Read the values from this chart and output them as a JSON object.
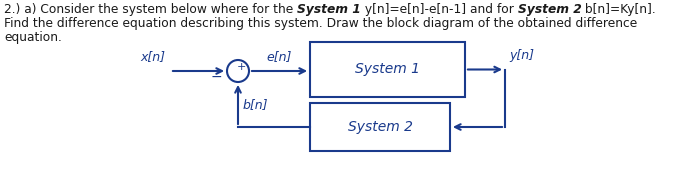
{
  "seg1": "2.) a) Consider the system below where for the ",
  "seg2": "System 1",
  "seg3": " y[n]=e[n]-e[n-1] and for ",
  "seg4": "System 2",
  "seg5": " b[n]=Ky[n].",
  "line2": "Find the difference equation describing this system. Draw the block diagram of the obtained difference",
  "line3": "equation.",
  "text_color": "#1a1a1a",
  "ink_color": "#1a3a8c",
  "bg_color": "#ffffff",
  "font_size": 8.8,
  "label_xn": "x[n]",
  "label_en": "e[n]",
  "label_bn": "b[n]",
  "label_yn": "y[n]",
  "label_sys1": "System 1",
  "label_sys2": "System 2",
  "plus_sign": "+",
  "minus_sign": "−"
}
